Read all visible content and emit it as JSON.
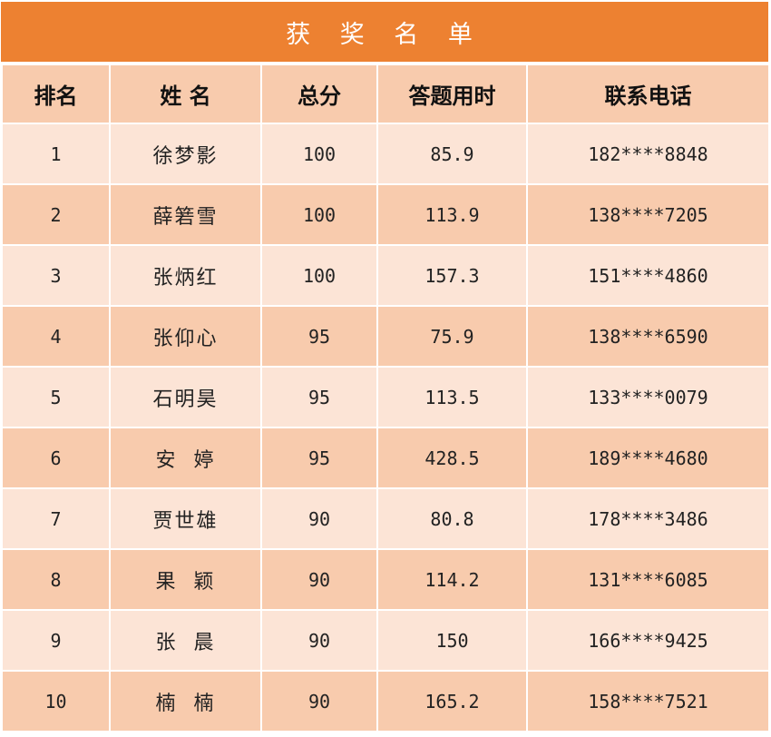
{
  "title": "获 奖 名 单",
  "colors": {
    "title_bg": "#ED8131",
    "header_bg": "#F8CBAD",
    "row_light": "#FCE4D6",
    "row_dark": "#F8CBAD"
  },
  "columns": [
    "排名",
    "姓 名",
    "总分",
    "答题用时",
    "联系电话"
  ],
  "rows": [
    {
      "rank": "1",
      "name": "徐梦影",
      "score": "100",
      "time": "85.9",
      "phone": "182****8848"
    },
    {
      "rank": "2",
      "name": "薛箬雪",
      "score": "100",
      "time": "113.9",
      "phone": "138****7205"
    },
    {
      "rank": "3",
      "name": "张炳红",
      "score": "100",
      "time": "157.3",
      "phone": "151****4860"
    },
    {
      "rank": "4",
      "name": "张仰心",
      "score": "95",
      "time": "75.9",
      "phone": "138****6590"
    },
    {
      "rank": "5",
      "name": "石明昊",
      "score": "95",
      "time": "113.5",
      "phone": "133****0079"
    },
    {
      "rank": "6",
      "name": "安  婷",
      "score": "95",
      "time": "428.5",
      "phone": "189****4680"
    },
    {
      "rank": "7",
      "name": "贾世雄",
      "score": "90",
      "time": "80.8",
      "phone": "178****3486"
    },
    {
      "rank": "8",
      "name": "果  颖",
      "score": "90",
      "time": "114.2",
      "phone": "131****6085"
    },
    {
      "rank": "9",
      "name": "张  晨",
      "score": "90",
      "time": "150",
      "phone": "166****9425"
    },
    {
      "rank": "10",
      "name": "楠  楠",
      "score": "90",
      "time": "165.2",
      "phone": "158****7521"
    }
  ]
}
